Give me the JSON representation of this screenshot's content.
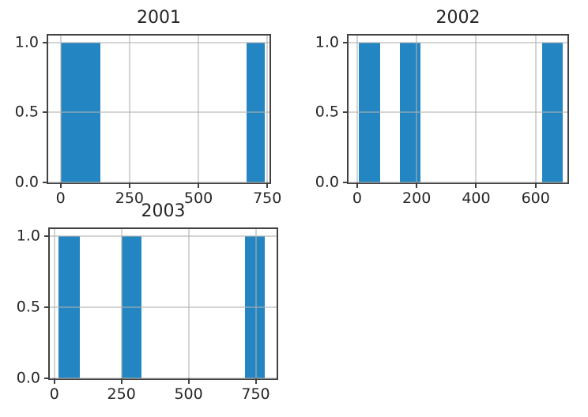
{
  "figure": {
    "description": "matplotlib-style figure with three histogram subplots arranged in a 2x2 grid (bottom-right empty)",
    "grid_on": true,
    "legend": "none"
  },
  "colors": {
    "bar": "#2385c1",
    "grid": "#b0b0b0",
    "axis": "#414141",
    "text": "#262626",
    "background": "#ffffff"
  },
  "chart_data": [
    {
      "type": "bar",
      "title": "2001",
      "xlabel": "",
      "ylabel": "",
      "xlim": [
        -45,
        758
      ],
      "ylim": [
        0,
        1.05
      ],
      "xticks": [
        {
          "v": 0,
          "label": "0"
        },
        {
          "v": 250,
          "label": "250"
        },
        {
          "v": 500,
          "label": "500"
        },
        {
          "v": 750,
          "label": "750"
        }
      ],
      "yticks": [
        {
          "v": 1.0,
          "label": "1.0"
        },
        {
          "v": 0.5,
          "label": "0.5"
        },
        {
          "v": 0.0,
          "label": "0.0"
        }
      ],
      "bars": [
        {
          "x_start": 0,
          "x_end": 145,
          "count": 1
        },
        {
          "x_start": 675,
          "x_end": 740,
          "count": 1
        }
      ]
    },
    {
      "type": "bar",
      "title": "2002",
      "xlabel": "",
      "ylabel": "",
      "xlim": [
        -29,
        707
      ],
      "ylim": [
        0,
        1.05
      ],
      "xticks": [
        {
          "v": 0,
          "label": "0"
        },
        {
          "v": 200,
          "label": "200"
        },
        {
          "v": 400,
          "label": "400"
        },
        {
          "v": 600,
          "label": "600"
        }
      ],
      "yticks": [
        {
          "v": 1.0,
          "label": "1.0"
        },
        {
          "v": 0.5,
          "label": "0.5"
        },
        {
          "v": 0.0,
          "label": "0.0"
        }
      ],
      "bars": [
        {
          "x_start": 5,
          "x_end": 76,
          "count": 1
        },
        {
          "x_start": 144,
          "x_end": 212,
          "count": 1
        },
        {
          "x_start": 623,
          "x_end": 690,
          "count": 1
        }
      ]
    },
    {
      "type": "bar",
      "title": "2003",
      "xlabel": "",
      "ylabel": "",
      "xlim": [
        -17,
        828
      ],
      "ylim": [
        0,
        1.05
      ],
      "xticks": [
        {
          "v": 0,
          "label": "0"
        },
        {
          "v": 250,
          "label": "250"
        },
        {
          "v": 500,
          "label": "500"
        },
        {
          "v": 750,
          "label": "750"
        }
      ],
      "yticks": [
        {
          "v": 1.0,
          "label": "1.0"
        },
        {
          "v": 0.5,
          "label": "0.5"
        },
        {
          "v": 0.0,
          "label": "0.0"
        }
      ],
      "bars": [
        {
          "x_start": 15,
          "x_end": 95,
          "count": 1
        },
        {
          "x_start": 252,
          "x_end": 324,
          "count": 1
        },
        {
          "x_start": 711,
          "x_end": 784,
          "count": 1
        }
      ]
    }
  ]
}
